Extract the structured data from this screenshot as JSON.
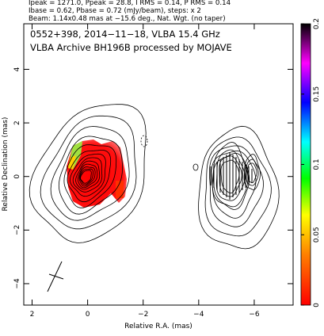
{
  "chart_data": {
    "type": "contour",
    "header": [
      "Ipeak = 1271.0, Ppeak = 28.8, I RMS = 0.14, P RMS = 0.14",
      "Ibase = 0.62, Pbase = 0.72 (mJy/beam), steps: x 2",
      "Beam: 1.14x0.48 mas at −15.6 deg., Nat. Wgt. (no taper)"
    ],
    "title": [
      "0552+398, 2014−11−18, VLBA 15.4 GHz",
      "VLBA Archive BH196B processed by MOJAVE"
    ],
    "x_label": "Relative R.A. (mas)",
    "y_label": "Relative Declination (mas)",
    "xlim": [
      2.3,
      -7.4
    ],
    "ylim": [
      -4.8,
      5.7
    ],
    "xticks": [
      2,
      0,
      {
        "value": -2,
        "label": "−2"
      },
      {
        "value": -4,
        "label": "−4"
      },
      {
        "value": -6,
        "label": "−6"
      }
    ],
    "yticks": [
      {
        "value": -4,
        "label": "−4"
      },
      {
        "value": -2,
        "label": "−2"
      },
      0,
      2,
      4
    ],
    "colorbar_lim": [
      0,
      0.2
    ],
    "colorbar_ticks": [
      0,
      0.05,
      0.1,
      0.15,
      0.2
    ]
  }
}
